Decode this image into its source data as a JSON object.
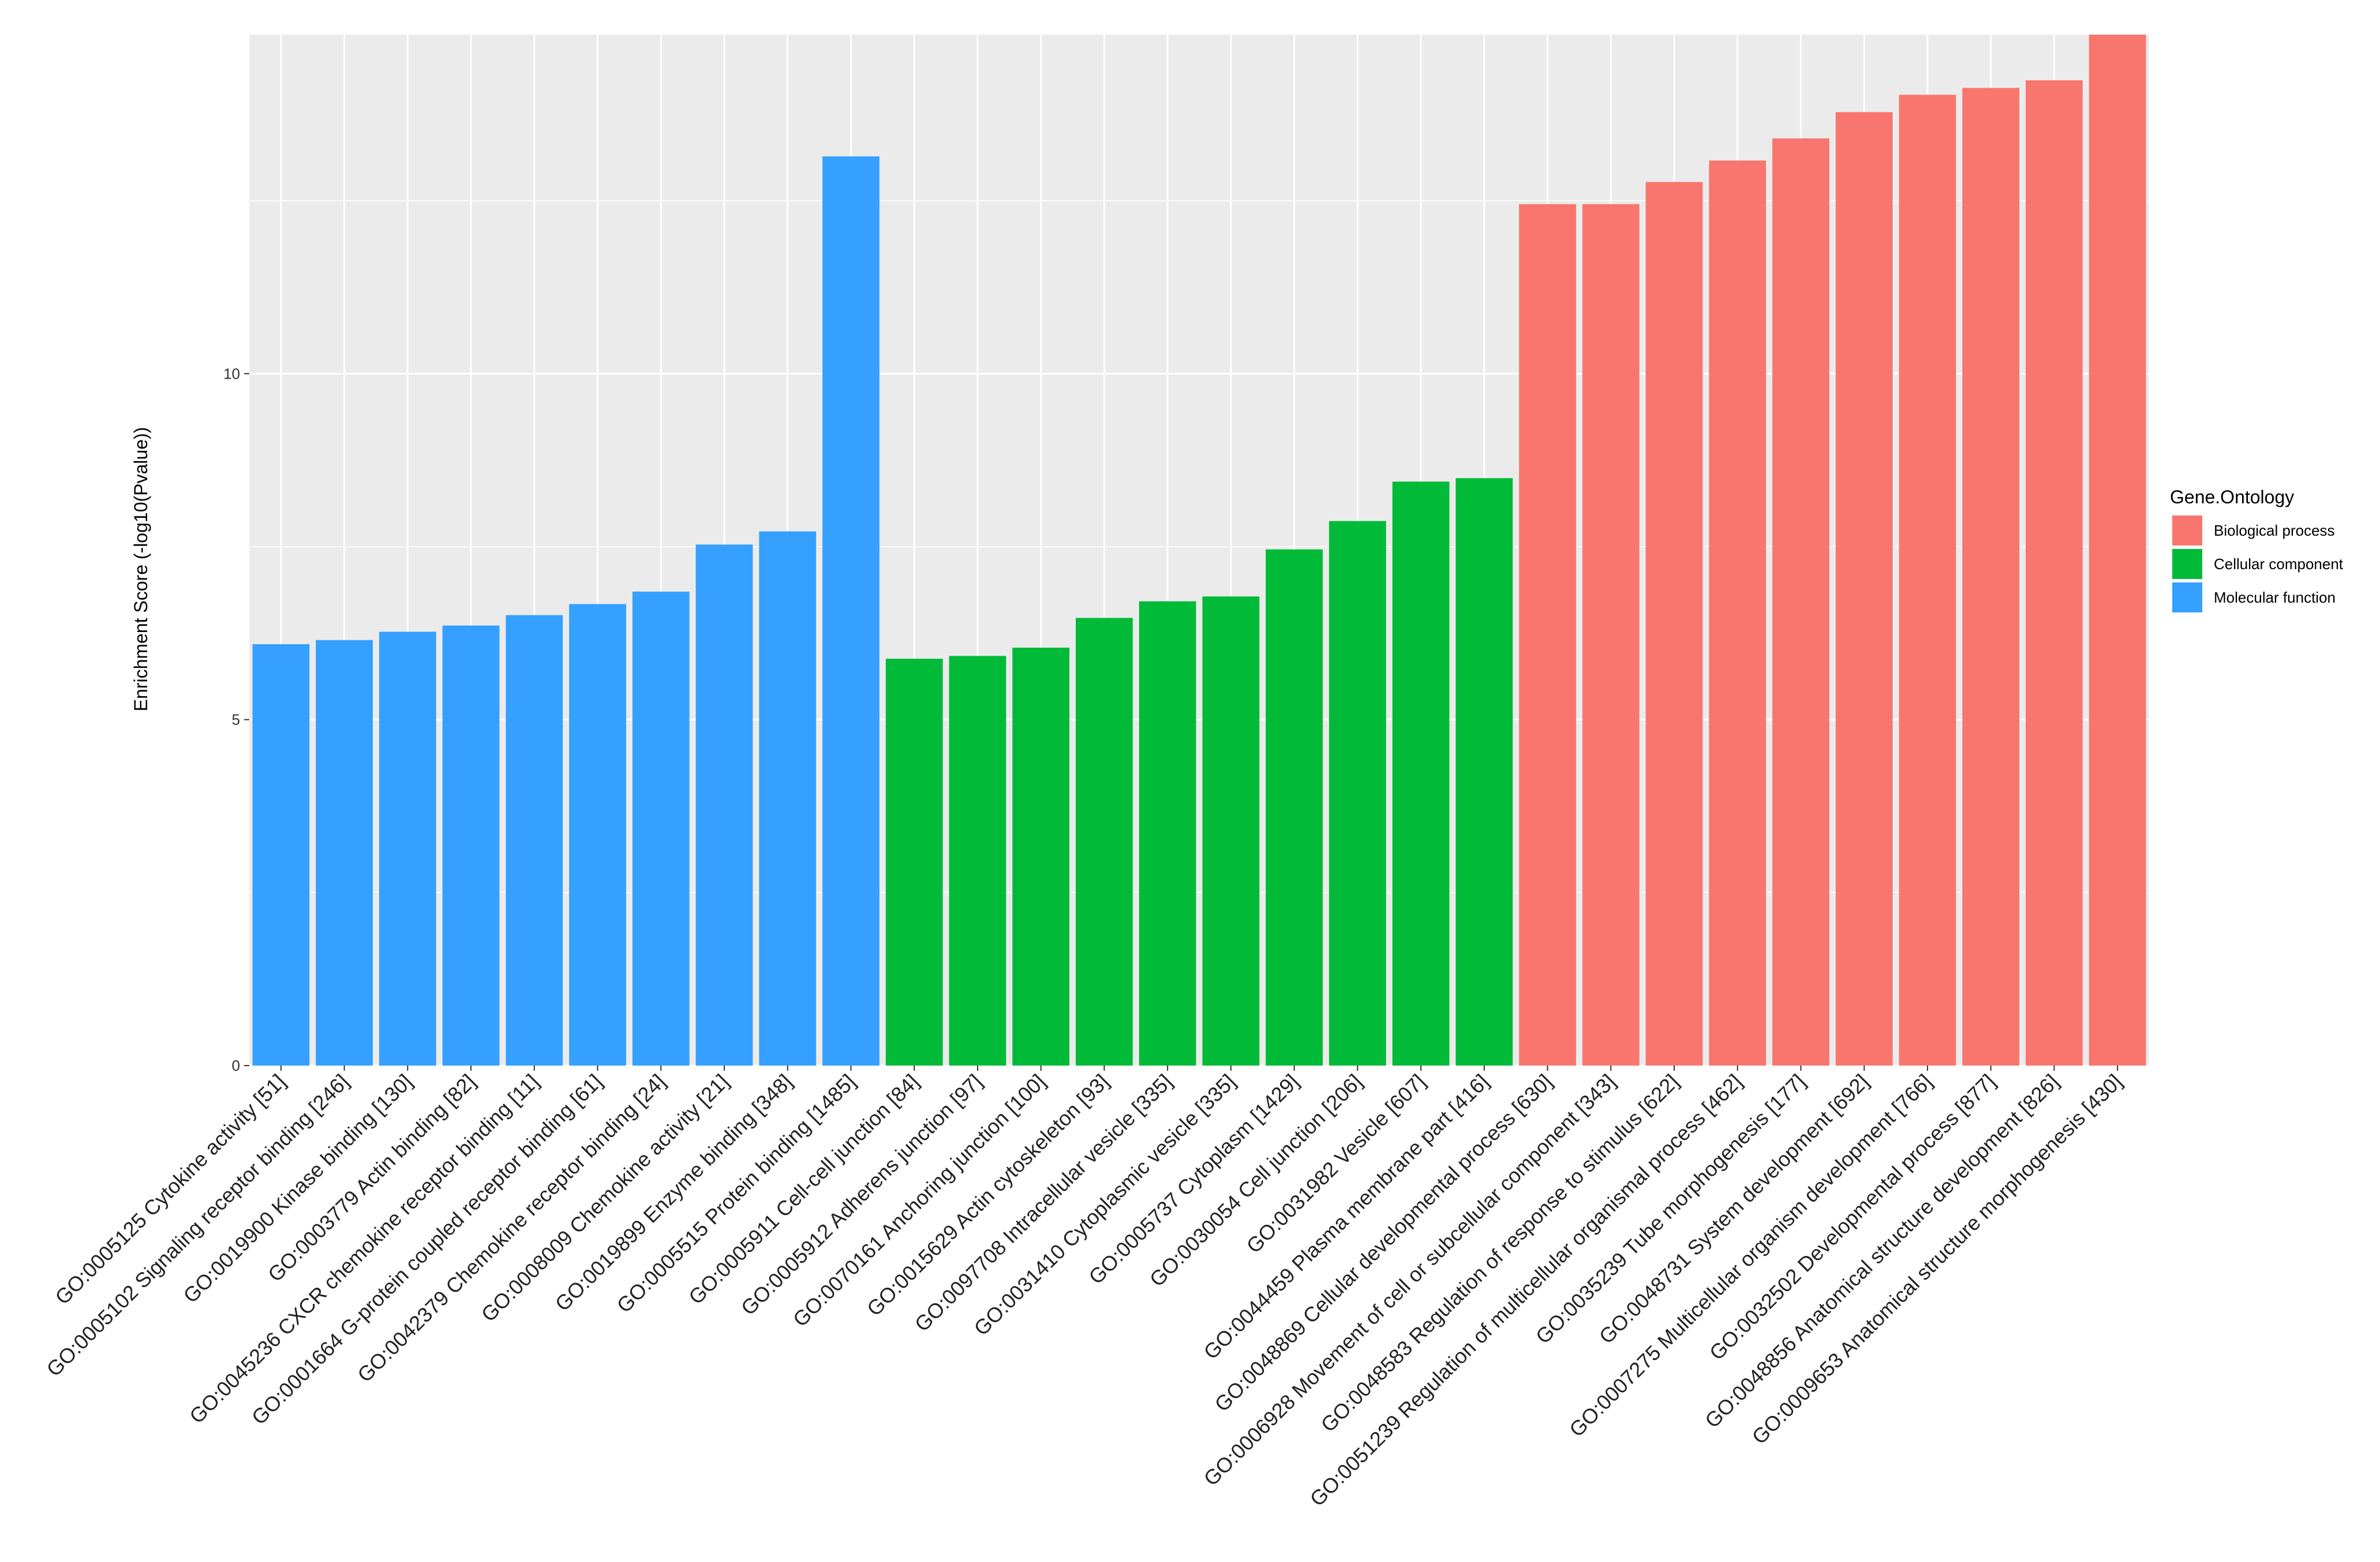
{
  "chart_data": {
    "type": "bar",
    "ylabel": "Enrichment Score (-log10(Pvalue))",
    "xlabel": "",
    "ylim": [
      0,
      14.9
    ],
    "yticks": [
      0,
      5,
      10
    ],
    "grid": true,
    "legend": {
      "title": "Gene.Ontology",
      "placement": "right",
      "entries": [
        {
          "name": "Biological process",
          "color": "#F8766D"
        },
        {
          "name": "Cellular component",
          "color": "#00BA38"
        },
        {
          "name": "Molecular function",
          "color": "#35A0FF"
        }
      ]
    },
    "categories": [
      "GO:0005125 Cytokine activity [51]",
      "GO:0005102 Signaling receptor binding [246]",
      "GO:0019900 Kinase binding [130]",
      "GO:0003779 Actin binding [82]",
      "GO:0045236 CXCR chemokine receptor binding [11]",
      "GO:0001664 G-protein coupled receptor binding [61]",
      "GO:0042379 Chemokine receptor binding [24]",
      "GO:0008009 Chemokine activity [21]",
      "GO:0019899 Enzyme binding [348]",
      "GO:0005515 Protein binding [1485]",
      "GO:0005911 Cell-cell junction [84]",
      "GO:0005912 Adherens junction [97]",
      "GO:0070161 Anchoring junction [100]",
      "GO:0015629 Actin cytoskeleton [93]",
      "GO:0097708 Intracellular vesicle [335]",
      "GO:0031410 Cytoplasmic vesicle [335]",
      "GO:0005737 Cytoplasm [1429]",
      "GO:0030054 Cell junction [206]",
      "GO:0031982 Vesicle [607]",
      "GO:0044459 Plasma membrane part [416]",
      "GO:0048869 Cellular developmental process [630]",
      "GO:0006928 Movement of cell or subcellular component [343]",
      "GO:0048583 Regulation of response to stimulus [622]",
      "GO:0051239 Regulation of multicellular organismal process [462]",
      "GO:0035239 Tube morphogenesis [177]",
      "GO:0048731 System development [692]",
      "GO:0007275 Multicellular organism development [766]",
      "GO:0032502 Developmental process [877]",
      "GO:0048856 Anatomical structure development [826]",
      "GO:0009653 Anatomical structure morphogenesis [430]"
    ],
    "values": [
      6.09,
      6.15,
      6.27,
      6.36,
      6.51,
      6.67,
      6.85,
      7.53,
      7.72,
      13.14,
      5.88,
      5.92,
      6.04,
      6.47,
      6.71,
      6.78,
      7.46,
      7.87,
      8.44,
      8.49,
      12.45,
      12.45,
      12.77,
      13.08,
      13.4,
      13.78,
      14.03,
      14.13,
      14.24,
      14.9
    ],
    "groups": [
      "Molecular function",
      "Molecular function",
      "Molecular function",
      "Molecular function",
      "Molecular function",
      "Molecular function",
      "Molecular function",
      "Molecular function",
      "Molecular function",
      "Molecular function",
      "Cellular component",
      "Cellular component",
      "Cellular component",
      "Cellular component",
      "Cellular component",
      "Cellular component",
      "Cellular component",
      "Cellular component",
      "Cellular component",
      "Cellular component",
      "Biological process",
      "Biological process",
      "Biological process",
      "Biological process",
      "Biological process",
      "Biological process",
      "Biological process",
      "Biological process",
      "Biological process",
      "Biological process"
    ]
  }
}
